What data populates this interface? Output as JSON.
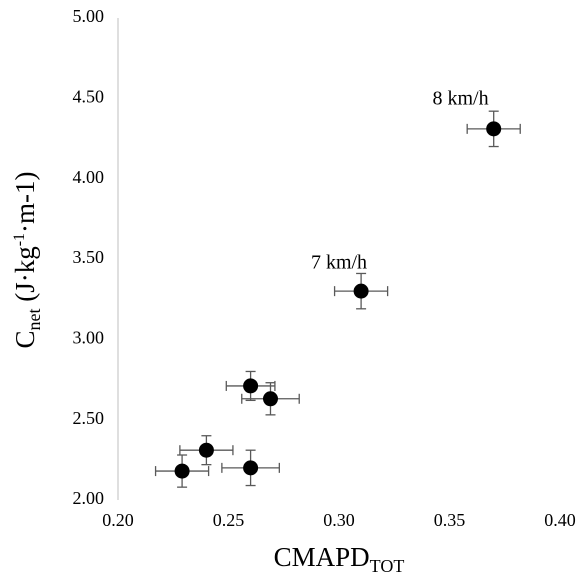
{
  "chart_data": {
    "type": "scatter",
    "xlabel": [
      "CMAPD",
      "TOT"
    ],
    "ylabel": [
      "C",
      "net",
      " (J·kg",
      "-1",
      "·m-1)"
    ],
    "xlim": [
      0.2,
      0.4
    ],
    "ylim": [
      2,
      5
    ],
    "xticks": [
      {
        "value": 0.2,
        "label": "0.20"
      },
      {
        "value": 0.25,
        "label": "0.25"
      },
      {
        "value": 0.3,
        "label": "0.30"
      },
      {
        "value": 0.35,
        "label": "0.35"
      },
      {
        "value": 0.4,
        "label": "0.40"
      }
    ],
    "yticks": [
      {
        "value": 2,
        "label": "2.00"
      },
      {
        "value": 2.5,
        "label": "2.50"
      },
      {
        "value": 3,
        "label": "3.00"
      },
      {
        "value": 3.5,
        "label": "3.50"
      },
      {
        "value": 4,
        "label": "4.00"
      },
      {
        "value": 4.5,
        "label": "4.50"
      },
      {
        "value": 5,
        "label": "5.00"
      }
    ],
    "series": [
      {
        "color": "#000000",
        "x": [
          0.229,
          0.24,
          0.26,
          0.26,
          0.269,
          0.31,
          0.37
        ],
        "values": [
          2.18,
          2.31,
          2.2,
          2.71,
          2.63,
          3.3,
          4.31
        ],
        "xerr": [
          0.012,
          0.012,
          0.013,
          0.011,
          0.013,
          0.012,
          0.012
        ],
        "yerr": [
          0.1,
          0.09,
          0.11,
          0.09,
          0.1,
          0.11,
          0.11
        ]
      }
    ],
    "annotations": [
      {
        "text": "8 km/h",
        "x": 0.355,
        "y": 4.49
      },
      {
        "text": "7 km/h",
        "x": 0.3,
        "y": 3.47
      }
    ]
  }
}
